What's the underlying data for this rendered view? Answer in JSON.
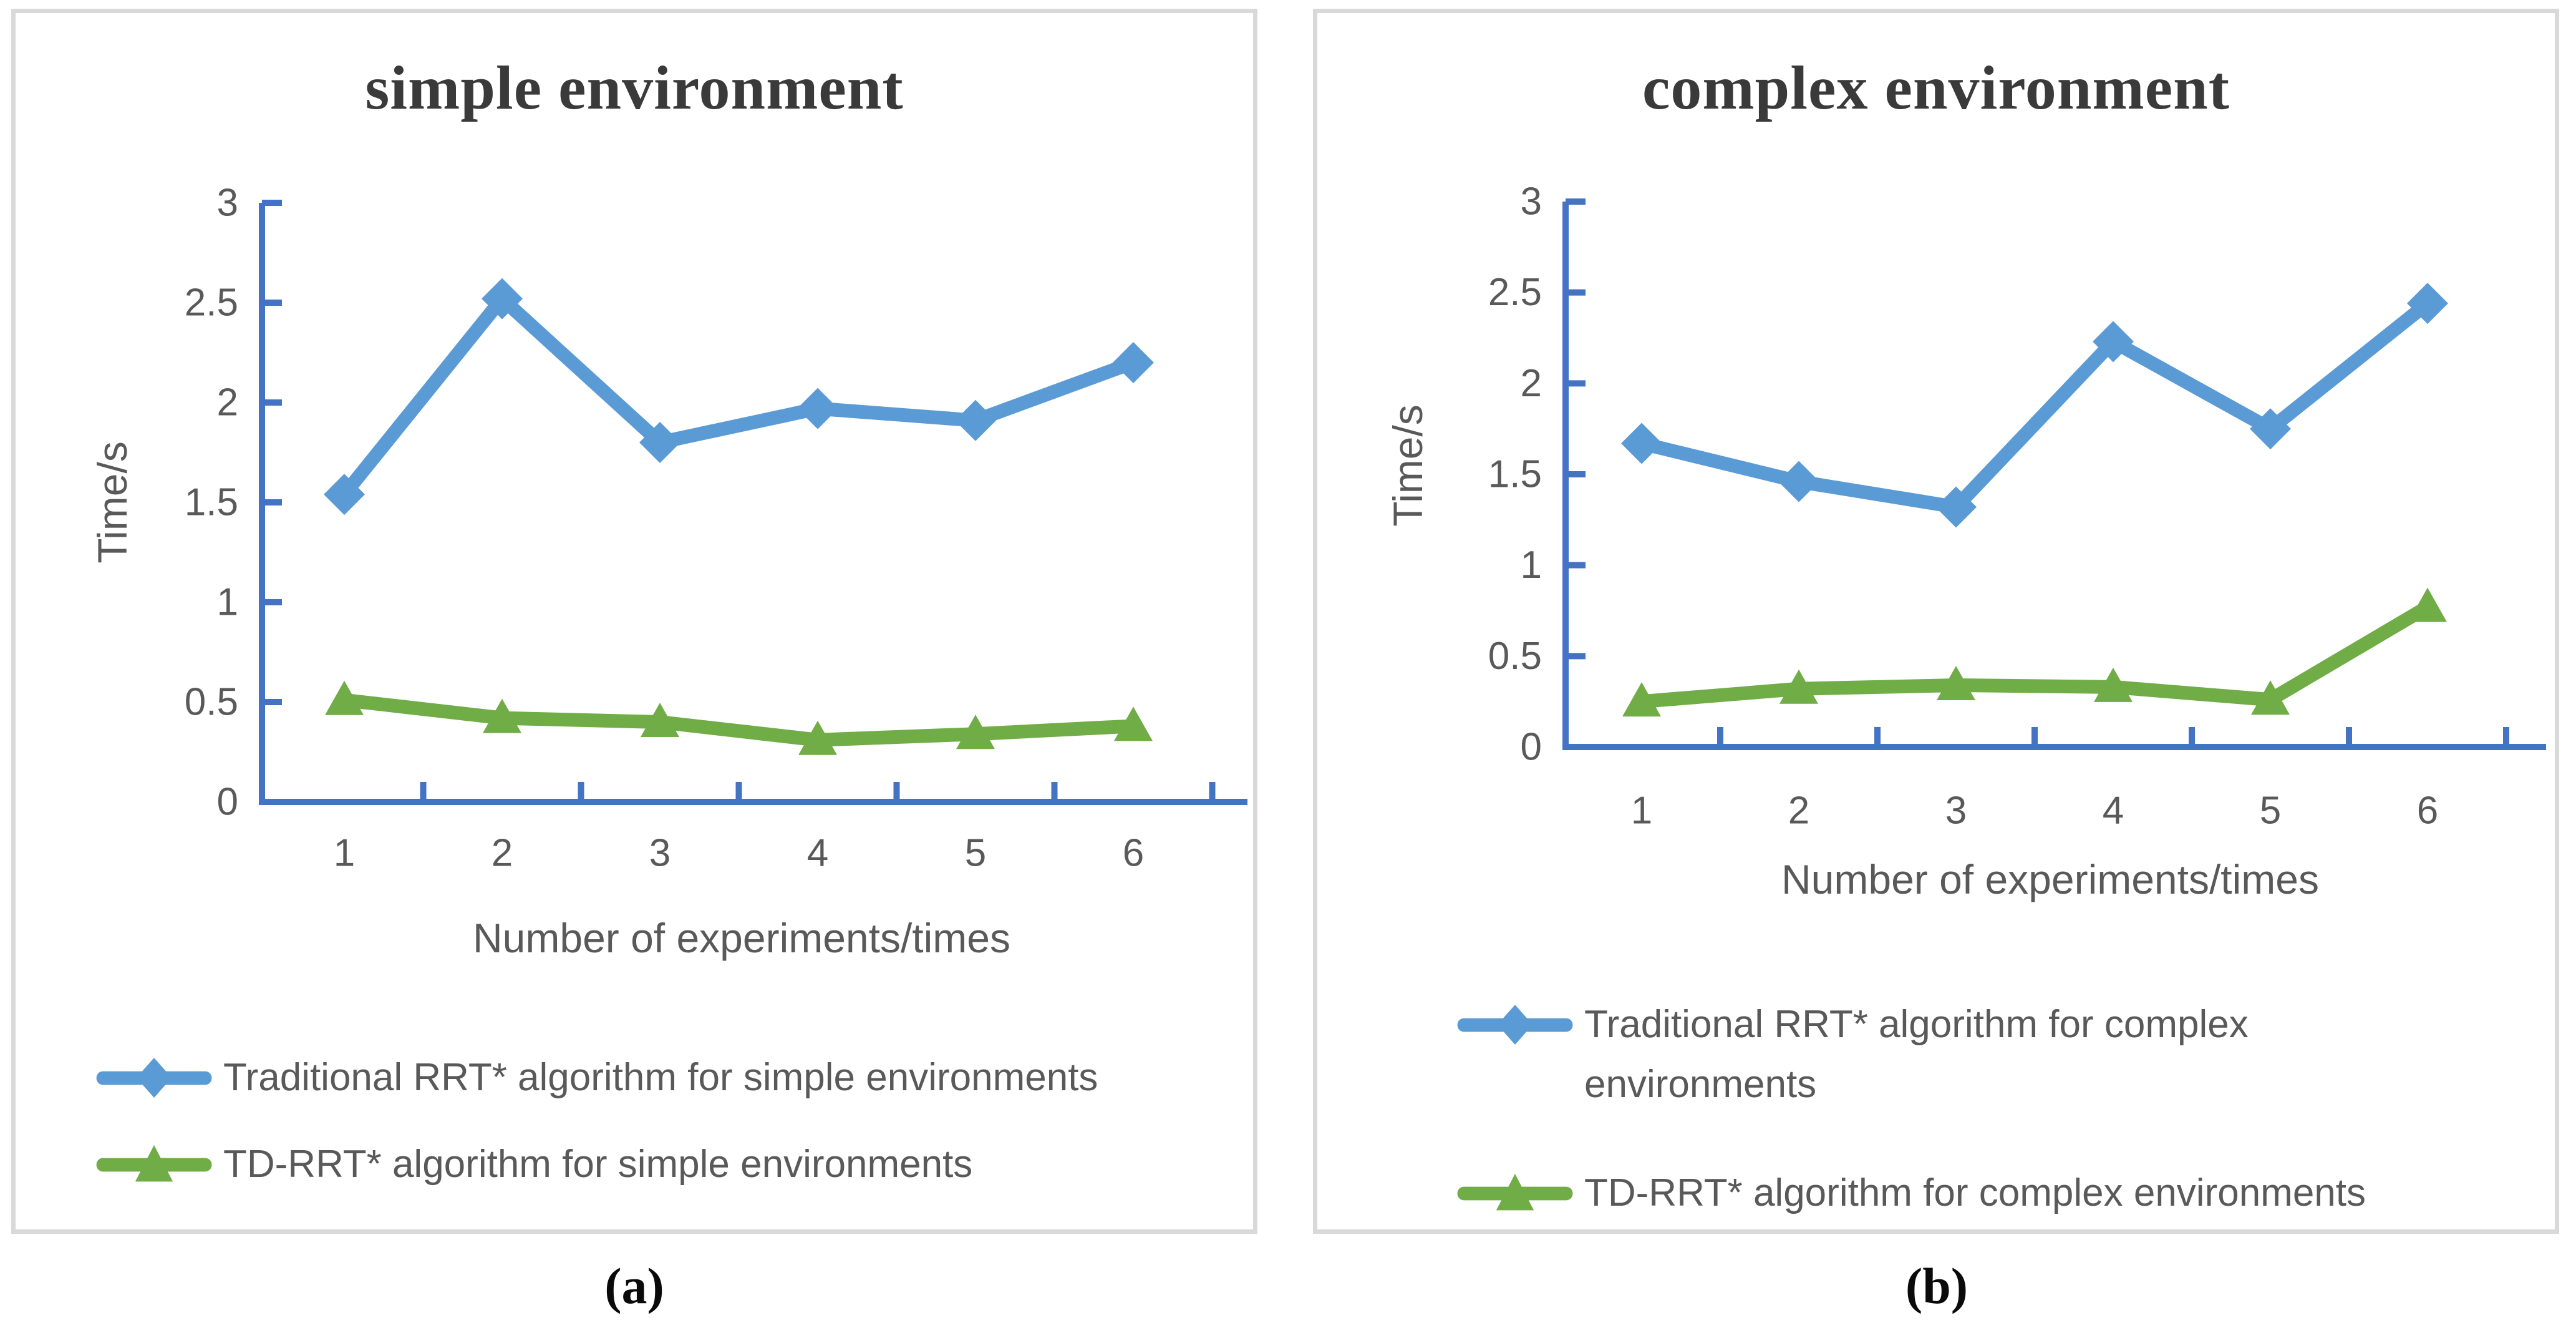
{
  "colors": {
    "blue": "#5B9BD5",
    "green": "#70AD47",
    "axis": "#4472C4",
    "text": "#595959",
    "title": "#3A3A3A",
    "panel_border": "#D9D9D9"
  },
  "panels": [
    {
      "title": "simple environment",
      "sublabel": "(a)"
    },
    {
      "title": "complex environment",
      "sublabel": "(b)"
    }
  ],
  "chart_data": [
    {
      "type": "line",
      "title": "simple environment",
      "xlabel": "Number of experiments/times",
      "ylabel": "Time/s",
      "categories": [
        1,
        2,
        3,
        4,
        5,
        6
      ],
      "ylim": [
        0,
        3
      ],
      "yticks": [
        0,
        0.5,
        1,
        1.5,
        2,
        2.5,
        3
      ],
      "grid": false,
      "legend_position": "bottom-left",
      "series": [
        {
          "name": "Traditional RRT* algorithm for simple environments",
          "marker": "diamond",
          "color": "#5B9BD5",
          "values": [
            1.54,
            2.52,
            1.8,
            1.97,
            1.91,
            2.2
          ]
        },
        {
          "name": "TD-RRT* algorithm for simple environments",
          "marker": "triangle",
          "color": "#70AD47",
          "values": [
            0.51,
            0.42,
            0.4,
            0.31,
            0.34,
            0.38
          ]
        }
      ]
    },
    {
      "type": "line",
      "title": "complex environment",
      "xlabel": "Number of experiments/times",
      "ylabel": "Time/s",
      "categories": [
        1,
        2,
        3,
        4,
        5,
        6
      ],
      "ylim": [
        0,
        3
      ],
      "yticks": [
        0,
        0.5,
        1,
        1.5,
        2,
        2.5,
        3
      ],
      "grid": false,
      "legend_position": "bottom-left",
      "series": [
        {
          "name": "Traditional RRT* algorithm for complex environments",
          "marker": "diamond",
          "color": "#5B9BD5",
          "values": [
            1.67,
            1.46,
            1.32,
            2.23,
            1.75,
            2.44
          ]
        },
        {
          "name": "TD-RRT* algorithm for complex environments",
          "marker": "triangle",
          "color": "#70AD47",
          "values": [
            0.25,
            0.32,
            0.34,
            0.33,
            0.26,
            0.77
          ]
        }
      ]
    }
  ]
}
